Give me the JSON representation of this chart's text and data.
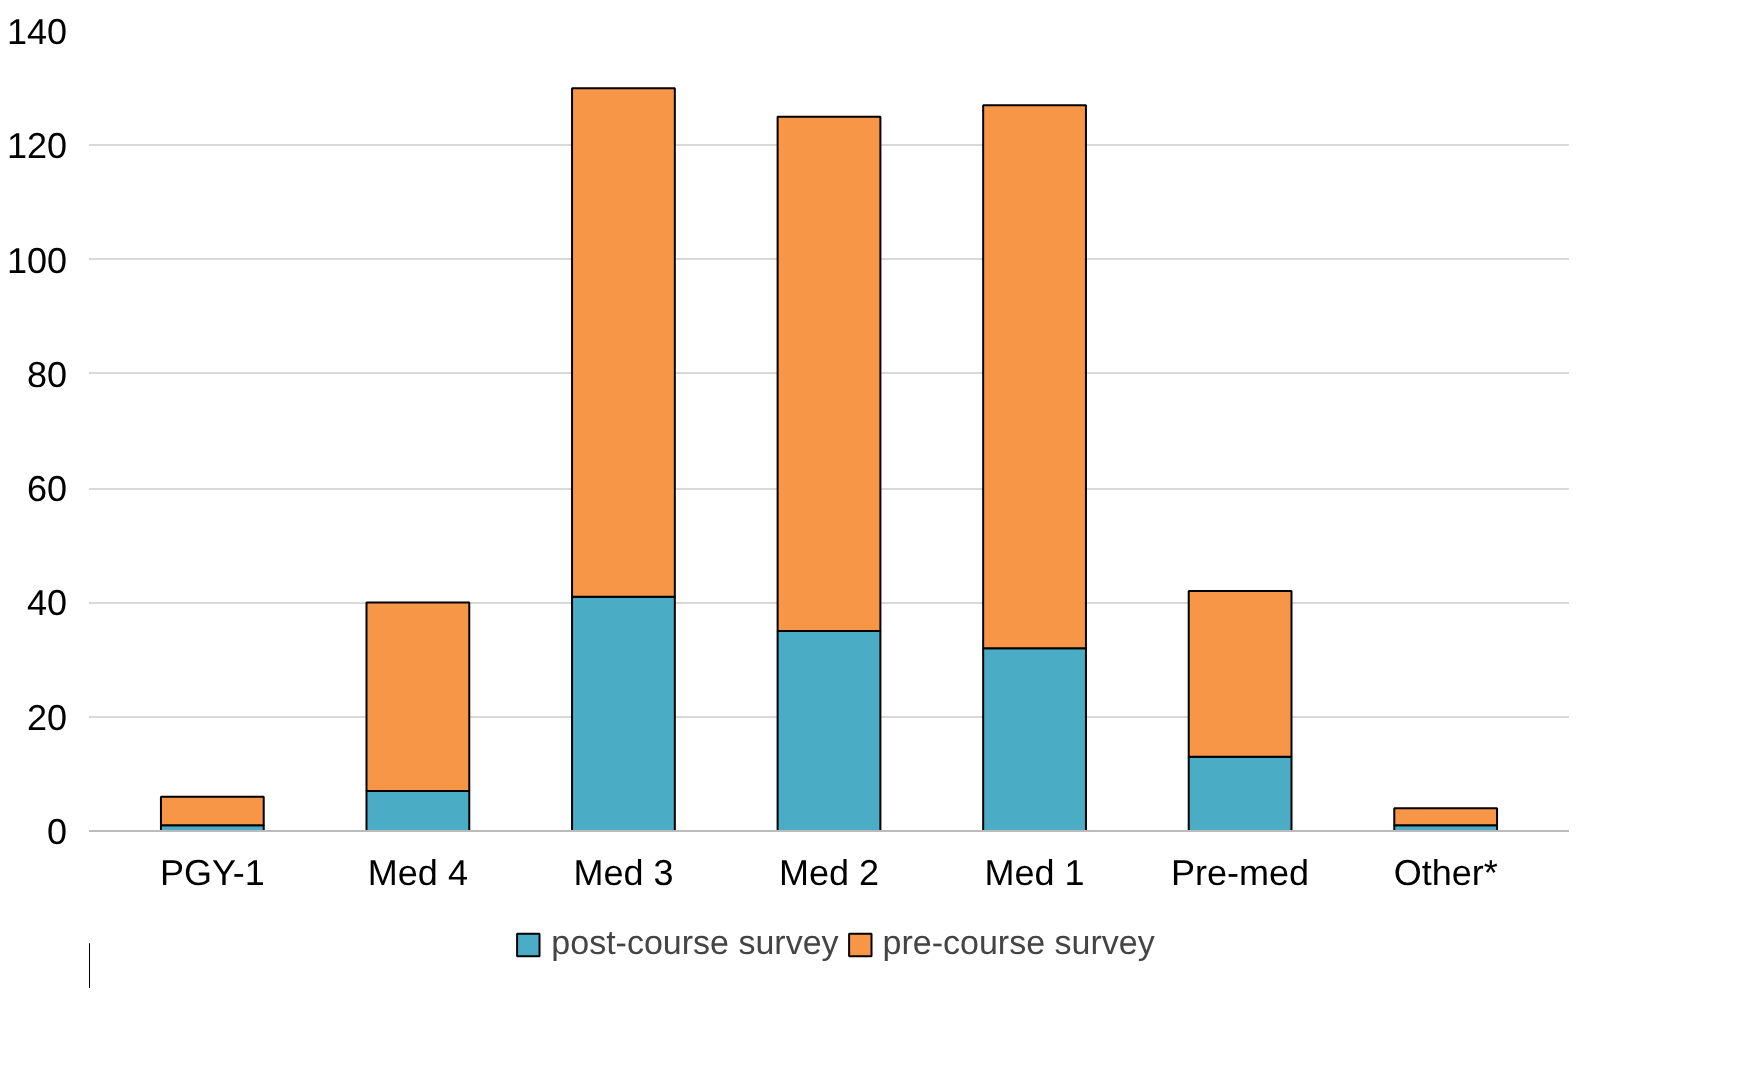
{
  "chart_data": {
    "type": "bar",
    "stacked": true,
    "categories": [
      "PGY-1",
      "Med 4",
      "Med 3",
      "Med 2",
      "Med 1",
      "Pre-med",
      "Other*"
    ],
    "series": [
      {
        "name": "post-course survey",
        "color": "#4bacc6",
        "values": [
          1,
          7,
          41,
          35,
          32,
          13,
          1
        ]
      },
      {
        "name": "pre-course survey",
        "color": "#f79646",
        "values": [
          5,
          33,
          89,
          90,
          95,
          29,
          3
        ]
      }
    ],
    "ylim": [
      0,
      140
    ],
    "yticks": [
      0,
      20,
      40,
      60,
      80,
      100,
      120,
      140
    ],
    "grid": "y",
    "legend": "bottom"
  }
}
